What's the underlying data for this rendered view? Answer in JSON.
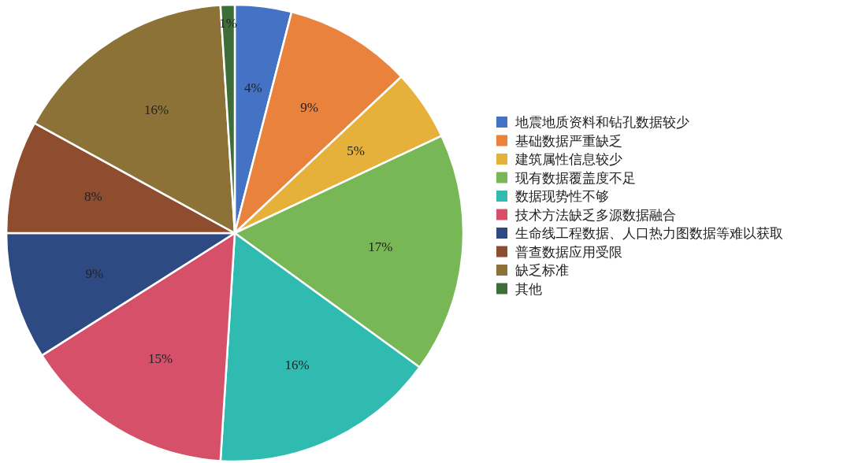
{
  "chart_data": {
    "type": "pie",
    "categories": [
      "地震地质资料和钻孔数据较少",
      "基础数据严重缺乏",
      "建筑属性信息较少",
      "现有数据覆盖度不足",
      "数据现势性不够",
      "技术方法缺乏多源数据融合",
      "生命线工程数据、人口热力图数据等难以获取",
      "普查数据应用受限",
      "缺乏标准",
      "其他"
    ],
    "values": [
      4,
      9,
      5,
      17,
      16,
      15,
      9,
      8,
      16,
      1
    ],
    "colors": [
      "#4472c4",
      "#e8823c",
      "#e5b13a",
      "#77b756",
      "#2fbbb0",
      "#d6506a",
      "#2e4a82",
      "#8e4d2e",
      "#8c7236",
      "#3e6d3a"
    ],
    "value_labels": [
      "4%",
      "9%",
      "5%",
      "17%",
      "16%",
      "15%",
      "9%",
      "8%",
      "16%",
      "1%"
    ],
    "legend": "right"
  }
}
